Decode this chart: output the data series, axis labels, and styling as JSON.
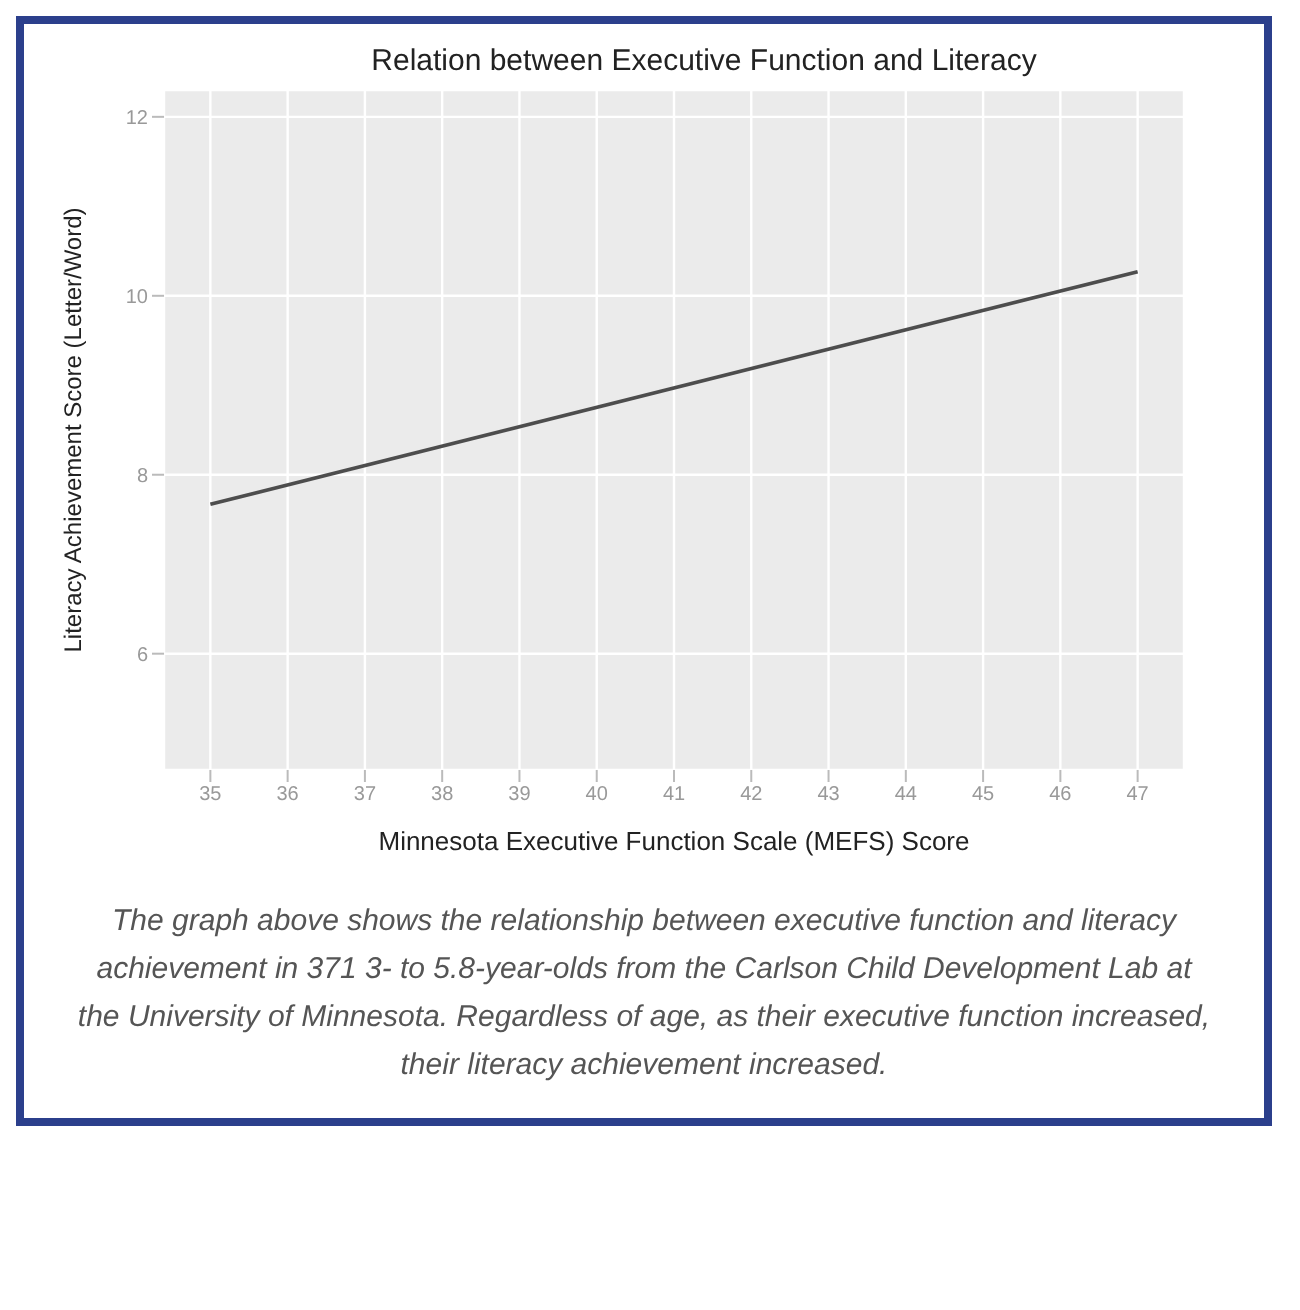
{
  "chart_data": {
    "type": "line",
    "title": "Relation between Executive Function and Literacy",
    "xlabel": "Minnesota Executive Function Scale (MEFS) Score",
    "ylabel": "Literacy Achievement Score (Letter/Word)",
    "x": [
      35,
      47
    ],
    "series": [
      {
        "color": "#4d4d4d",
        "values": [
          7.67,
          10.27
        ]
      }
    ],
    "xlim": [
      34.4,
      47.6
    ],
    "xticks": [
      35,
      36,
      37,
      38,
      39,
      40,
      41,
      42,
      43,
      44,
      45,
      46,
      47
    ],
    "ylim": [
      4.7,
      12.3
    ],
    "yticks": [
      6,
      8,
      10,
      12
    ],
    "grid": true,
    "legend": false,
    "marker": "none",
    "line_style": "solid",
    "annotations": [
      "The graph above shows the relationship between executive function and literacy achievement in 371 3- to 5.8-year-olds from the Carlson Child Development Lab at the University of Minnesota. Regardless of age, as their executive function increased, their literacy achievement increased."
    ]
  }
}
